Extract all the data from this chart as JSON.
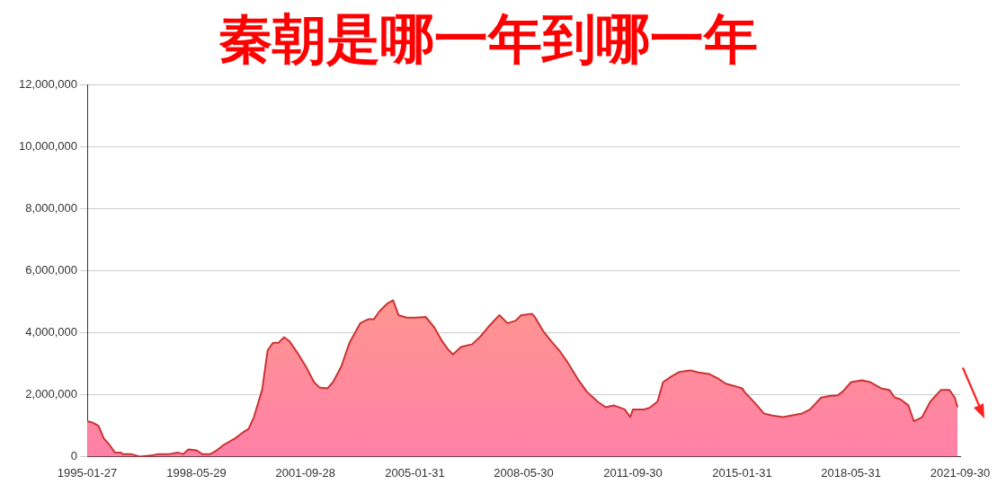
{
  "chart_data": {
    "type": "area",
    "title": "秦朝是哪一年到哪一年",
    "x": [
      "1995-01-27",
      "1995-04",
      "1995-06",
      "1995-08",
      "1995-10",
      "1995-12",
      "1996-02",
      "1996-03",
      "1996-06",
      "1996-09",
      "1997-01",
      "1997-04",
      "1997-08",
      "1997-11",
      "1998-01",
      "1998-03",
      "1998-06",
      "1998-08",
      "1998-11",
      "1999-01",
      "1999-04",
      "1999-08",
      "1999-11",
      "2000-01",
      "2000-03",
      "2000-06",
      "2000-08",
      "2000-10",
      "2000-12",
      "2001-02",
      "2001-04",
      "2001-07",
      "2001-10",
      "2002-01",
      "2002-03",
      "2002-06",
      "2002-08",
      "2002-11",
      "2003-02",
      "2003-06",
      "2003-09",
      "2003-11",
      "2004-01",
      "2004-04",
      "2004-06",
      "2004-08",
      "2004-11",
      "2005-02",
      "2005-06",
      "2005-09",
      "2005-12",
      "2006-02",
      "2006-04",
      "2006-07",
      "2006-11",
      "2007-02",
      "2007-05",
      "2007-09",
      "2007-12",
      "2008-03",
      "2008-05",
      "2008-09",
      "2008-10",
      "2009-01",
      "2009-04",
      "2009-07",
      "2009-10",
      "2010-02",
      "2010-05",
      "2010-09",
      "2010-12",
      "2011-03",
      "2011-07",
      "2011-09",
      "2011-10",
      "2012-02",
      "2012-04",
      "2012-07",
      "2012-09",
      "2012-12",
      "2013-03",
      "2013-07",
      "2013-10",
      "2014-02",
      "2014-05",
      "2014-08",
      "2014-11",
      "2015-02",
      "2015-03",
      "2015-07",
      "2015-10",
      "2016-01",
      "2016-05",
      "2016-08",
      "2016-12",
      "2017-03",
      "2017-07",
      "2017-10",
      "2018-01",
      "2018-03",
      "2018-06",
      "2018-10",
      "2019-01",
      "2019-05",
      "2019-08",
      "2019-10",
      "2019-12",
      "2020-03",
      "2020-05",
      "2020-08",
      "2020-11",
      "2021-03",
      "2021-06",
      "2021-08",
      "2021-09"
    ],
    "series": [
      {
        "color": "#cc3333",
        "values": [
          1140000,
          1090000,
          990000,
          580000,
          380000,
          130000,
          130000,
          80000,
          80000,
          0,
          30000,
          80000,
          80000,
          130000,
          80000,
          230000,
          200000,
          80000,
          80000,
          180000,
          380000,
          580000,
          780000,
          890000,
          1270000,
          2150000,
          3420000,
          3670000,
          3670000,
          3850000,
          3720000,
          3340000,
          2910000,
          2400000,
          2230000,
          2200000,
          2400000,
          2900000,
          3670000,
          4300000,
          4430000,
          4430000,
          4680000,
          4940000,
          5040000,
          4560000,
          4480000,
          4480000,
          4500000,
          4180000,
          3720000,
          3470000,
          3290000,
          3540000,
          3620000,
          3870000,
          4180000,
          4560000,
          4300000,
          4380000,
          4560000,
          4600000,
          4500000,
          4050000,
          3720000,
          3420000,
          3040000,
          2460000,
          2100000,
          1770000,
          1590000,
          1650000,
          1520000,
          1270000,
          1520000,
          1520000,
          1570000,
          1770000,
          2400000,
          2580000,
          2730000,
          2780000,
          2710000,
          2660000,
          2530000,
          2350000,
          2280000,
          2200000,
          2080000,
          1700000,
          1390000,
          1320000,
          1270000,
          1320000,
          1390000,
          1520000,
          1900000,
          1950000,
          1970000,
          2100000,
          2400000,
          2460000,
          2400000,
          2200000,
          2150000,
          1900000,
          1850000,
          1650000,
          1140000,
          1270000,
          1770000,
          2150000,
          2150000,
          1900000,
          1590000
        ]
      }
    ],
    "xlim": [
      "1995-01-27",
      "2021-09-30"
    ],
    "xticks": [
      "1995-01-27",
      "1998-05-29",
      "2001-09-28",
      "2005-01-31",
      "2008-05-30",
      "2011-09-30",
      "2015-01-31",
      "2018-05-31",
      "2021-09-30"
    ],
    "ylim": [
      0,
      12000000
    ],
    "yticks": [
      {
        "value": 0,
        "label": "0"
      },
      {
        "value": 2000000,
        "label": "2,000,000"
      },
      {
        "value": 4000000,
        "label": "4,000,000"
      },
      {
        "value": 6000000,
        "label": "6,000,000"
      },
      {
        "value": 8000000,
        "label": "8,000,000"
      },
      {
        "value": 10000000,
        "label": "10,000,000"
      },
      {
        "value": 12000000,
        "label": "12,000,000"
      }
    ],
    "grid": "y",
    "legend": false,
    "marker": "none"
  }
}
